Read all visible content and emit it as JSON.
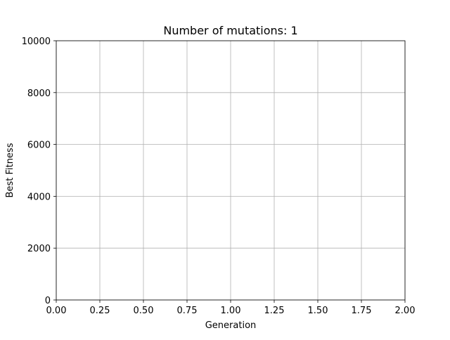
{
  "chart_data": {
    "type": "line",
    "title": "Number of mutations: 1",
    "xlabel": "Generation",
    "ylabel": "Best Fitness",
    "xlim": [
      0,
      2
    ],
    "ylim": [
      0,
      10000
    ],
    "xticks": [
      0,
      0.25,
      0.5,
      0.75,
      1,
      1.25,
      1.5,
      1.75,
      2
    ],
    "xtick_labels": [
      "0.00",
      "0.25",
      "0.50",
      "0.75",
      "1.00",
      "1.25",
      "1.50",
      "1.75",
      "2.00"
    ],
    "yticks": [
      0,
      2000,
      4000,
      6000,
      8000,
      10000
    ],
    "ytick_labels": [
      "0",
      "2000",
      "4000",
      "6000",
      "8000",
      "10000"
    ],
    "grid": true,
    "series": [
      {
        "x": [],
        "y": []
      }
    ]
  }
}
